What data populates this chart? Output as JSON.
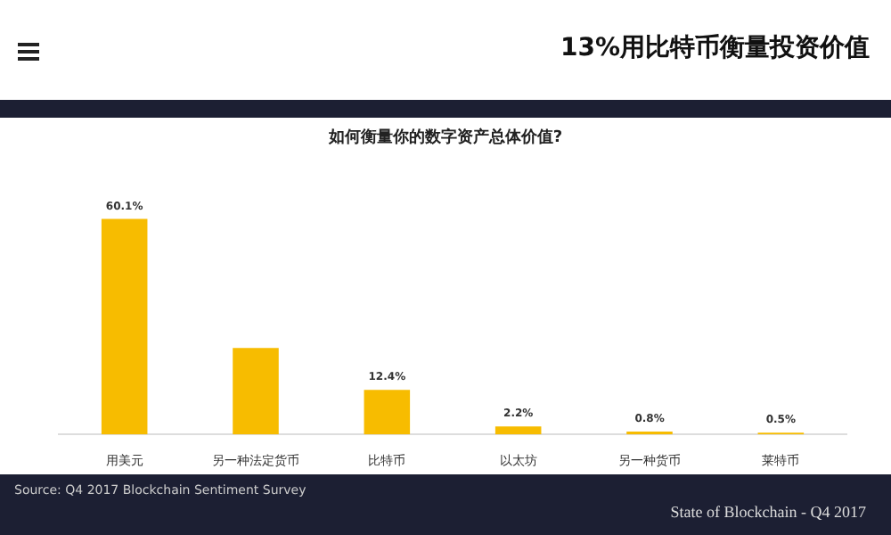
{
  "chart_data": {
    "type": "bar",
    "title": "如何衡量你的数字资产总体价值?",
    "categories": [
      "用美元",
      "另一种法定货币",
      "比特币",
      "以太坊",
      "另一种货币",
      "莱特币"
    ],
    "values": [
      60.1,
      24.1,
      12.4,
      2.2,
      0.8,
      0.5
    ],
    "value_labels": [
      "60.1%",
      null,
      "12.4%",
      "2.2%",
      "0.8%",
      "0.5%"
    ],
    "color": "#f7bc00",
    "relative": false,
    "annotations": [
      "13%用比特币衡量投资价值",
      "Source: Q4 2017 Blockchain Sentiment Survey",
      "State of Blockchain - Q4 2017"
    ]
  }
}
